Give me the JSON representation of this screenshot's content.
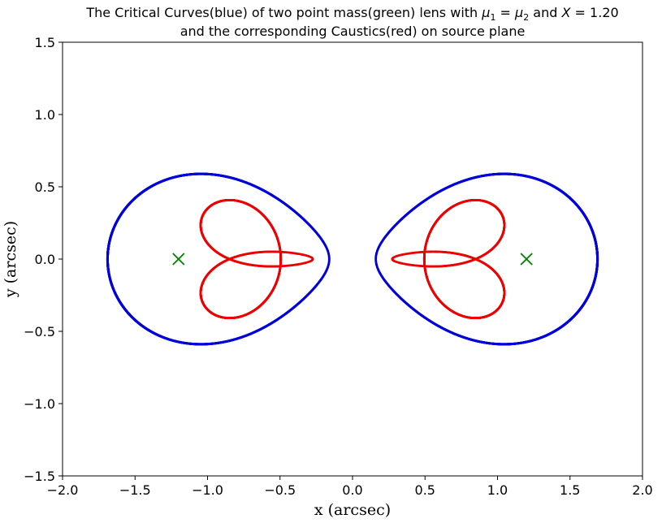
{
  "chart_data": {
    "type": "line",
    "title_line1_pre": "The Critical Curves(blue) of two point mass(green) lens with ",
    "title_mu1": "μ",
    "title_sub1": "1",
    "title_eq": " = ",
    "title_mu2": "μ",
    "title_sub2": "2",
    "title_and": " and ",
    "title_X": "X",
    "title_xval": " = 1.20",
    "title_line2": "and the corresponding Caustics(red) on source plane",
    "xlabel": "x (arcsec)",
    "ylabel": "y (arcsec)",
    "xlim": [
      -2.0,
      2.0
    ],
    "ylim": [
      -1.5,
      1.5
    ],
    "x_ticks": [
      -2.0,
      -1.5,
      -1.0,
      -0.5,
      0.0,
      0.5,
      1.0,
      1.5,
      2.0
    ],
    "x_tick_labels": [
      "−2.0",
      "−1.5",
      "−1.0",
      "−0.5",
      "0.0",
      "0.5",
      "1.0",
      "1.5",
      "2.0"
    ],
    "y_ticks": [
      -1.5,
      -1.0,
      -0.5,
      0.0,
      0.5,
      1.0,
      1.5
    ],
    "y_tick_labels": [
      "−1.5",
      "−1.0",
      "−0.5",
      "0.0",
      "0.5",
      "1.0",
      "1.5"
    ],
    "grid": false,
    "lens_separation_X": 1.2,
    "lens_positions": [
      {
        "x": -1.2,
        "y": 0.0
      },
      {
        "x": 1.2,
        "y": 0.0
      }
    ],
    "colors": {
      "critical_curve": "#0000dd",
      "caustic": "#ee0000",
      "lens": "#008000",
      "axes": "#000000"
    }
  }
}
